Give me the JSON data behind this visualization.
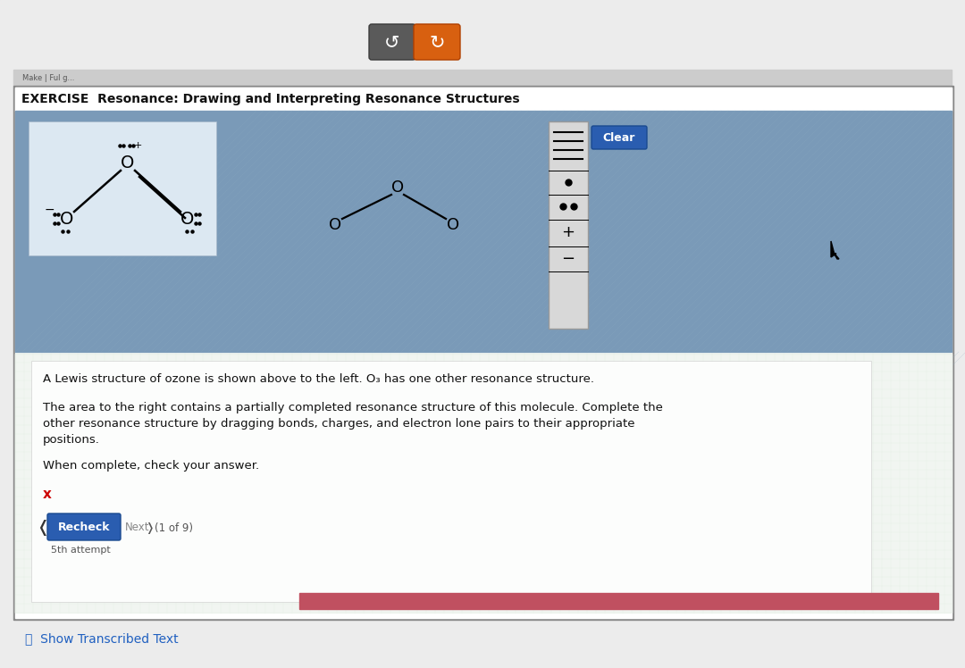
{
  "bg_outer": "#e8e8e8",
  "title_text": "EXERCISE  Resonance: Drawing and Interpreting Resonance Structures",
  "body_text_line1": "A Lewis structure of ozone is shown above to the left. O₃ has one other resonance structure.",
  "body_text_line2": "The area to the right contains a partially completed resonance structure of this molecule. Complete the",
  "body_text_line3": "other resonance structure by dragging bonds, charges, and electron lone pairs to their appropriate",
  "body_text_line4": "positions.",
  "body_text_line5": "When complete, check your answer.",
  "nav_text": "(1 of 9)",
  "attempt_text": "5th attempt",
  "recheck_text": "Recheck",
  "clear_text": "Clear",
  "show_text": "ⓘ  Show Transcribed Text",
  "btn1_color": "#5a5a5a",
  "btn2_color": "#d86010",
  "clear_btn_color": "#2a5db0",
  "recheck_btn_color": "#2a5db0",
  "blue_panel_color": "#7a9ab8",
  "lewis_box_color": "#dce8f2",
  "text_panel_color": "#dce8dc",
  "toolbar_bg": "#d8d8d8",
  "outer_border": "#666666",
  "progress_bar_color": "#c05060"
}
